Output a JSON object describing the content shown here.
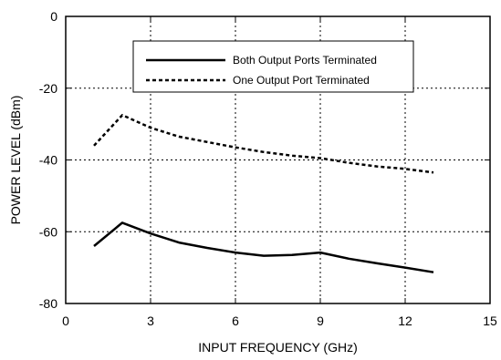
{
  "chart_data": {
    "type": "line",
    "xlabel": "INPUT FREQUENCY (GHz)",
    "ylabel": "POWER LEVEL (dBm)",
    "xlim": [
      0,
      15
    ],
    "ylim": [
      -80,
      0
    ],
    "x_ticks": [
      0,
      3,
      6,
      9,
      12,
      15
    ],
    "y_ticks": [
      0,
      -20,
      -40,
      -60,
      -80
    ],
    "x_tick_labels": [
      "0",
      "3",
      "6",
      "9",
      "12",
      "15"
    ],
    "y_tick_labels": [
      "0",
      "-20",
      "-40",
      "-60",
      "-80"
    ],
    "grid": true,
    "grid_style": "dotted",
    "legend_position": "top-center",
    "series": [
      {
        "name": "Both Output Ports Terminated",
        "line_style": "solid",
        "color": "#000000",
        "x": [
          1,
          2,
          3,
          4,
          5,
          6,
          7,
          8,
          9,
          10,
          11,
          12,
          13
        ],
        "y": [
          -64,
          -57.5,
          -60.5,
          -63,
          -64.5,
          -65.8,
          -66.7,
          -66.5,
          -65.8,
          -67.5,
          -68.8,
          -70,
          -71.3
        ]
      },
      {
        "name": "One Output Port Terminated",
        "line_style": "dashed",
        "color": "#000000",
        "x": [
          1,
          2,
          3,
          4,
          5,
          6,
          7,
          8,
          9,
          10,
          11,
          12,
          13
        ],
        "y": [
          -36,
          -27.5,
          -31,
          -33.5,
          -35,
          -36.5,
          -37.8,
          -38.8,
          -39.5,
          -40.8,
          -41.8,
          -42.5,
          -43.5
        ]
      }
    ]
  }
}
